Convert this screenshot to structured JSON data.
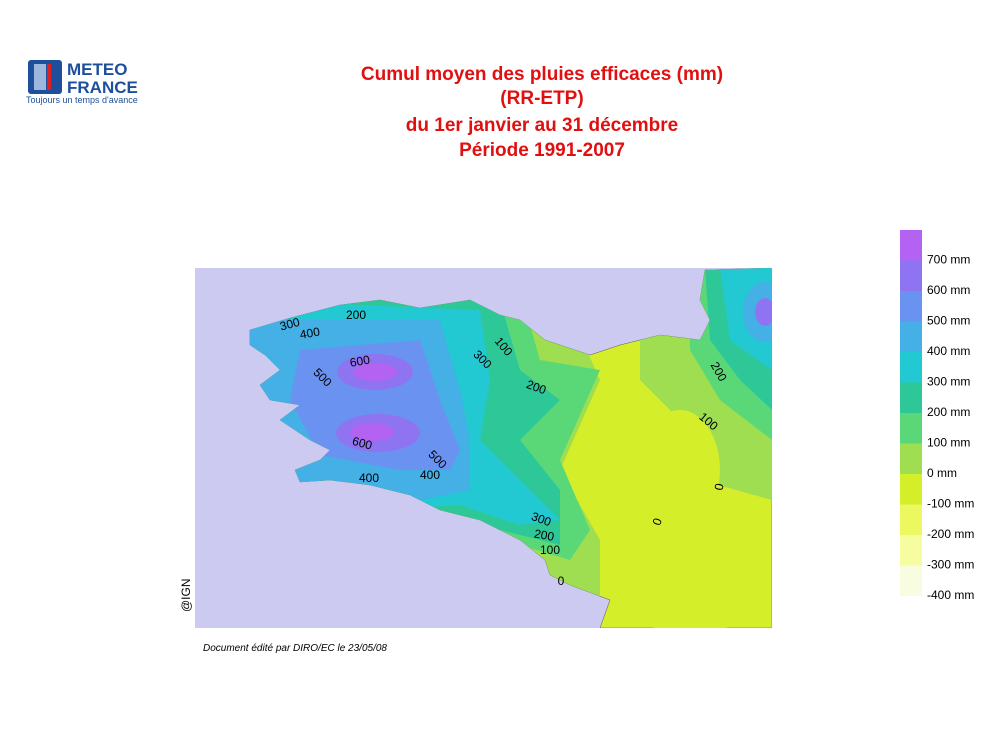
{
  "logo": {
    "line1": "METEO",
    "line2": "FRANCE",
    "tagline": "Toujours un temps d'avance"
  },
  "title": [
    "Cumul moyen des pluies efficaces (mm)",
    "(RR-ETP)",
    "du 1er janvier au 31 décembre",
    "Période 1991-2007"
  ],
  "legend": [
    {
      "label": "700 mm",
      "color": "#b462f2"
    },
    {
      "label": "600 mm",
      "color": "#8f74f2"
    },
    {
      "label": "500 mm",
      "color": "#6a92f0"
    },
    {
      "label": "400 mm",
      "color": "#44b0e6"
    },
    {
      "label": "300 mm",
      "color": "#22c8d2"
    },
    {
      "label": "200 mm",
      "color": "#2ec898"
    },
    {
      "label": "100 mm",
      "color": "#5ad878"
    },
    {
      "label": "0 mm",
      "color": "#9ede50"
    },
    {
      "label": "-100 mm",
      "color": "#d4ee2a"
    },
    {
      "label": "-200 mm",
      "color": "#ecf860"
    },
    {
      "label": "-300 mm",
      "color": "#f6fca0"
    },
    {
      "label": "-400 mm",
      "color": "#f8fce0"
    }
  ],
  "contour_labels": [
    200,
    300,
    400,
    600,
    500,
    100,
    300,
    200,
    200,
    100,
    600,
    500,
    400,
    400,
    0,
    0,
    300,
    200,
    100,
    0
  ],
  "credit": "@IGN",
  "footer": "Document édité par DIRO/EC le 23/05/08"
}
